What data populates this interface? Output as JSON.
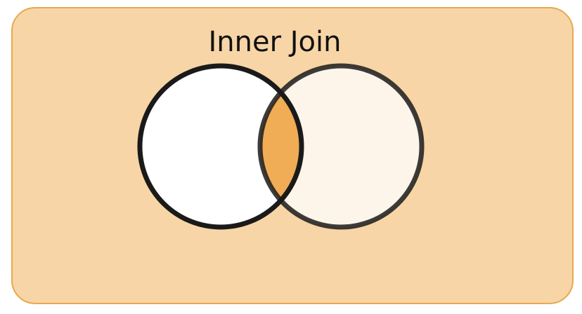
{
  "title": "Inner Join",
  "colors": {
    "panel_fill": "#f7d5a6",
    "panel_border": "#e8a84e",
    "left_circle_fill": "#ffffff",
    "right_circle_fill": "#fef5ea",
    "intersection_fill": "#f0ad55",
    "circle_stroke": "#1a1a1a"
  },
  "venn": {
    "sets": [
      "left",
      "right"
    ],
    "highlighted_region": "intersection"
  }
}
